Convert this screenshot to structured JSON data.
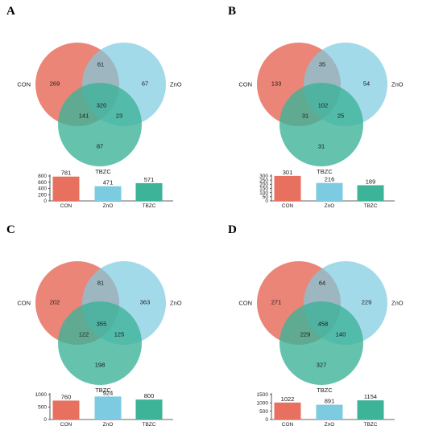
{
  "colors": {
    "CON": "#e8705f",
    "ZnO": "#7ccbe0",
    "TBZC": "#3db398"
  },
  "panels": [
    {
      "letter": "A",
      "labels": {
        "a": "CON",
        "b": "ZnO",
        "c": "TBZC"
      },
      "regions": {
        "a_only": "269",
        "b_only": "67",
        "c_only": "87",
        "ab": "61",
        "ac": "141",
        "bc": "23",
        "abc": "320"
      },
      "chart_data": {
        "type": "bar",
        "categories": [
          "CON",
          "ZnO",
          "TBZC"
        ],
        "values": [
          781,
          471,
          571
        ],
        "yticks": [
          0,
          200,
          400,
          600,
          800
        ],
        "ylim": [
          0,
          800
        ]
      }
    },
    {
      "letter": "B",
      "labels": {
        "a": "CON",
        "b": "ZnO",
        "c": "TBZC"
      },
      "regions": {
        "a_only": "133",
        "b_only": "54",
        "c_only": "31",
        "ab": "35",
        "ac": "31",
        "bc": "25",
        "abc": "102"
      },
      "chart_data": {
        "type": "bar",
        "categories": [
          "CON",
          "ZnO",
          "TBZC"
        ],
        "values": [
          301,
          216,
          189
        ],
        "yticks": [
          0,
          50,
          100,
          150,
          200,
          250,
          300
        ],
        "ylim": [
          0,
          300
        ]
      }
    },
    {
      "letter": "C",
      "labels": {
        "a": "CON",
        "b": "ZnO",
        "c": "TBZC"
      },
      "regions": {
        "a_only": "202",
        "b_only": "363",
        "c_only": "198",
        "ab": "81",
        "ac": "122",
        "bc": "125",
        "abc": "355"
      },
      "chart_data": {
        "type": "bar",
        "categories": [
          "CON",
          "ZnO",
          "TBZC"
        ],
        "values": [
          760,
          924,
          800
        ],
        "yticks": [
          0,
          500,
          1000
        ],
        "ylim": [
          0,
          1000
        ]
      }
    },
    {
      "letter": "D",
      "labels": {
        "a": "CON",
        "b": "ZnO",
        "c": "TBZC"
      },
      "regions": {
        "a_only": "271",
        "b_only": "229",
        "c_only": "327",
        "ab": "64",
        "ac": "229",
        "bc": "140",
        "abc": "458"
      },
      "chart_data": {
        "type": "bar",
        "categories": [
          "CON",
          "ZnO",
          "TBZC"
        ],
        "values": [
          1022,
          891,
          1154
        ],
        "yticks": [
          0,
          500,
          1000,
          1500
        ],
        "ylim": [
          0,
          1500
        ]
      }
    }
  ]
}
